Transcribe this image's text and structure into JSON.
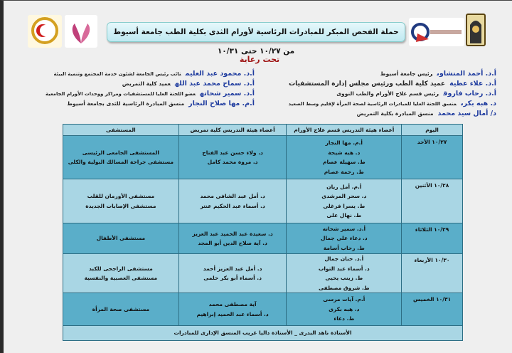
{
  "header": {
    "title": "حملة الفحص المبكر للمبادرات الرئاسية لأورام الثدى بكلية الطب جامعة أسيوط من ١٠/٢٧ حتى ١٠/٣١",
    "under_patronage": "تحت رعاية",
    "logos": [
      "assiut-university-logo",
      "medical-school-logo",
      "women-health-initiative-logo",
      "red-crescent-logo"
    ]
  },
  "sponsors": {
    "right": [
      {
        "name": "أ.د. أحمد المنشاوى",
        "role": "رئيس جامعة أسيوط"
      },
      {
        "name": "أ.د. علاء عطية",
        "role": "عميد كلية الطب ورئيس مجلس إدارة المستشفيات"
      },
      {
        "name": "أ.د. رحاب فاروق",
        "role": "رئيس قسم علاج الأورام والطب النووى"
      },
      {
        "name": "د. هبه بكرى",
        "role": "منسق اللجنة العليا للمبادرات الرئاسية لصحة المرأة لإقليم وسط الصعيد"
      },
      {
        "name": "د/ أمال سيد محمد",
        "role": "منسق المبادرة بكلية التمريض"
      }
    ],
    "left": [
      {
        "name": "أ.د. محمود عبد العليم",
        "role": "نائب رئيس الجامعة لشئون خدمة المجتمع وتنمية البيئة"
      },
      {
        "name": "أ.د. سماح محمد عبد الله",
        "role": "عميد كلية التمريض"
      },
      {
        "name": "أ.د. سمير شحاته",
        "role": "عضو اللجنة العليا للمستشفيات ومراكز ووحدات الأورام الجامعية"
      },
      {
        "name": "أ.م. مها صلاح النجار",
        "role": "منسق المبادرة الرئاسية للثدى بجامعة أسيوط"
      }
    ]
  },
  "table": {
    "headers": [
      "اليوم",
      "أعضاء هيئة التدريس قسم علاج الأورام",
      "أعضاء هيئة التدريس كلية تمريض",
      "المستشفى"
    ],
    "rows": [
      {
        "day": "١٠/٢٧ الأحد",
        "oncology": [
          "أ.م. مها النجار",
          "د. هبه شيحة",
          "ط. سهيلة عصام",
          "ط. رحمة عصام"
        ],
        "nursing": [
          "د. ولاء حسن عبد الفتاح",
          "د. مروة محمد كامل"
        ],
        "hospital": [
          "المستشفى الجامعى الرئيسى",
          "مستشفى جراحة المسالك البولية والكلى"
        ]
      },
      {
        "day": "١٠/٢٨ الأثنين",
        "oncology": [
          "أ.م. أمل ريان",
          "د. سحر المرشدى",
          "ط. يسرا فرغلى",
          "ط. نهال على"
        ],
        "nursing": [
          "د. أمل عبد الشافى محمد",
          "د. أسماء عبد الحكيم عنتر"
        ],
        "hospital": [
          "مستشفى الأورمان للقلب",
          "مستشفى الإصابات الجديدة"
        ]
      },
      {
        "day": "١٠/٢٩ الثلاثاء",
        "oncology": [
          "أ.د. سمير شحاته",
          "د. دعاء على جمال",
          "ط. رحاب أسامة"
        ],
        "nursing": [
          "د. سعيدة عبد الحميد عبد العزيز",
          "د. آية صلاح الدين أبو المجد"
        ],
        "hospital": [
          "مستشفى الأطفال"
        ]
      },
      {
        "day": "١٠/٣٠ الأربعاء",
        "oncology": [
          "أ.د. حنان جمال",
          "د. أسماء عبد التواب",
          "ط. زينب يحيى",
          "ط. شروق مصطفى"
        ],
        "nursing": [
          "د. أمل عبد العزيز أحمد",
          "د. أسماء أبو بكر حلمى"
        ],
        "hospital": [
          "مستشفى الراجحى للكبد",
          "مستشفى العصبية والنفسية"
        ]
      },
      {
        "day": "١٠/٣١ الخميس",
        "oncology": [
          "أ.م. آيات مرسى",
          "د. هبه بكرى",
          "ط. دعاء"
        ],
        "nursing": [
          "آية مصطفى محمد",
          "د. أسماء عبد الحميد إبراهيم"
        ],
        "hospital": [
          "مستشفى صحة المرأة"
        ]
      }
    ],
    "footer": "الأستاذة ناهد البدرى _ الأستاذة داليا غريب المنسق الإدارى للمبادرات"
  },
  "colors": {
    "row_light": "#a9d6e4",
    "row_dark": "#5aaec9",
    "title_red": "#a01818",
    "name_blue": "#1d3a9e"
  }
}
